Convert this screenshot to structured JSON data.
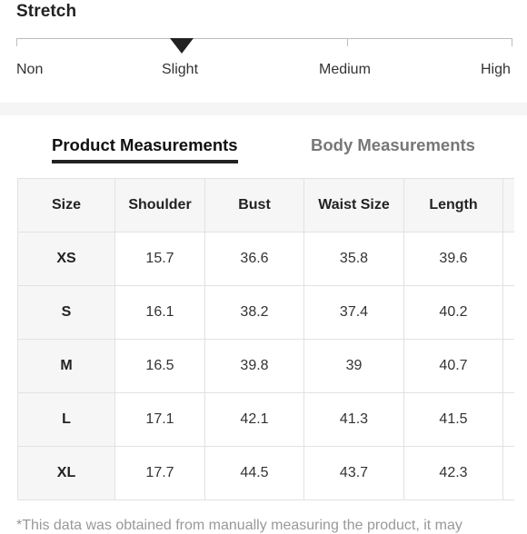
{
  "stretch": {
    "title": "Stretch",
    "levels": [
      "Non",
      "Slight",
      "Medium",
      "High"
    ],
    "selected": "Slight"
  },
  "tabs": [
    {
      "label": "Product Measurements",
      "active": true
    },
    {
      "label": "Body Measurements",
      "active": false
    }
  ],
  "table": {
    "headers": [
      "Size",
      "Shoulder",
      "Bust",
      "Waist Size",
      "Length"
    ],
    "rows": [
      [
        "XS",
        "15.7",
        "36.6",
        "35.8",
        "39.6"
      ],
      [
        "S",
        "16.1",
        "38.2",
        "37.4",
        "40.2"
      ],
      [
        "M",
        "16.5",
        "39.8",
        "39",
        "40.7"
      ],
      [
        "L",
        "17.1",
        "42.1",
        "41.3",
        "41.5"
      ],
      [
        "XL",
        "17.7",
        "44.5",
        "43.7",
        "42.3"
      ]
    ]
  },
  "note": "*This data was obtained from manually measuring the product, it may"
}
